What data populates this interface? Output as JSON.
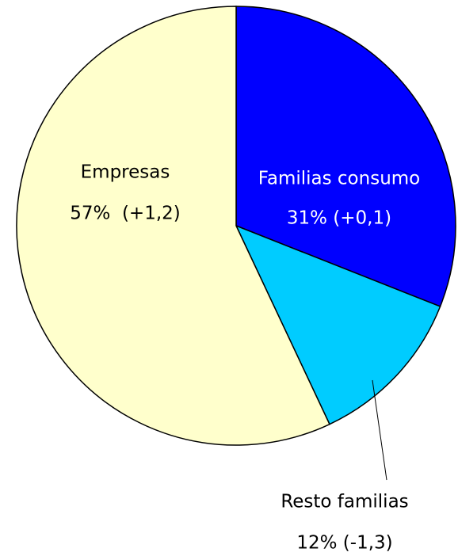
{
  "chart_data": {
    "type": "pie",
    "categories": [
      "Familias consumo",
      "Resto familias",
      "Empresas"
    ],
    "values": [
      31,
      12,
      57
    ],
    "value_labels": [
      "31% (+0,1)",
      "12% (-1,3)",
      "57%  (+1,2)"
    ],
    "colors": [
      "#0000ff",
      "#00ccff",
      "#ffffcc"
    ],
    "label_colors": [
      "#ffffff",
      "#000000",
      "#000000"
    ]
  }
}
